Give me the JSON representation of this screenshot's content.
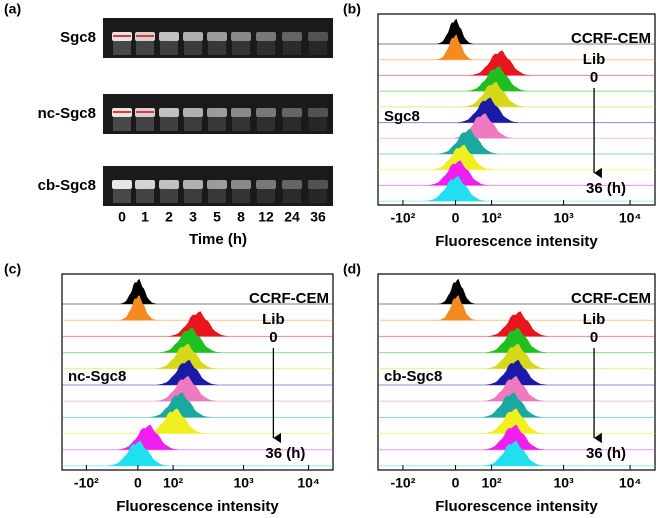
{
  "panels": [
    {
      "label": "(a)",
      "gel_labels": [
        "Sgc8",
        "nc-Sgc8",
        "cb-Sgc8"
      ],
      "lanes": [
        "0",
        "1",
        "2",
        "3",
        "5",
        "8",
        "12",
        "24",
        "36"
      ],
      "x_title": "Time (h)"
    },
    {
      "label": "(b)",
      "cell": "CCRF-CEM",
      "lib": "Lib",
      "start": "0",
      "end": "36 (h)",
      "sample": "Sgc8",
      "xticks": [
        "-10²",
        "0",
        "10²",
        "10³",
        "10⁴"
      ],
      "x_title": "Fluorescence intensity"
    },
    {
      "label": "(c)",
      "cell": "CCRF-CEM",
      "lib": "Lib",
      "start": "0",
      "end": "36 (h)",
      "sample": "nc-Sgc8",
      "xticks": [
        "-10²",
        "0",
        "10²",
        "10³",
        "10⁴"
      ],
      "x_title": "Fluorescence intensity"
    },
    {
      "label": "(d)",
      "cell": "CCRF-CEM",
      "lib": "Lib",
      "start": "0",
      "end": "36 (h)",
      "sample": "cb-Sgc8",
      "xticks": [
        "-10²",
        "0",
        "10²",
        "10³",
        "10⁴"
      ],
      "x_title": "Fluorescence intensity"
    }
  ]
}
